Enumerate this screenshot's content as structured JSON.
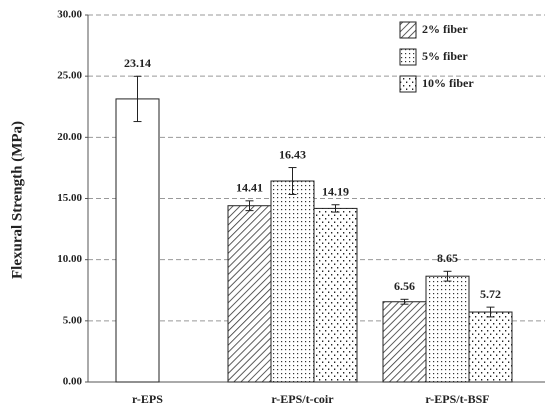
{
  "chart_data": {
    "type": "bar",
    "y_label": "Flexural Strength (MPa)",
    "categories": [
      "r-EPS",
      "r-EPS/t-coir",
      "r-EPS/t-BSF"
    ],
    "reference_values": [
      23.14,
      null,
      null
    ],
    "reference_errors": [
      1.85,
      null,
      null
    ],
    "series": [
      {
        "name": "2% fiber",
        "pattern": "diagonal",
        "values": [
          null,
          14.41,
          6.56
        ],
        "errors": [
          null,
          0.4,
          0.2
        ]
      },
      {
        "name": "5% fiber",
        "pattern": "dots",
        "values": [
          null,
          16.43,
          8.65
        ],
        "errors": [
          null,
          1.1,
          0.4
        ]
      },
      {
        "name": "10% fiber",
        "pattern": "sparse-dots",
        "values": [
          null,
          14.19,
          5.72
        ],
        "errors": [
          null,
          0.3,
          0.4
        ]
      }
    ],
    "ylim": [
      0,
      30
    ],
    "yticks": [
      {
        "value": 0,
        "label": "0.00"
      },
      {
        "value": 5,
        "label": "5.00"
      },
      {
        "value": 10,
        "label": "10.00"
      },
      {
        "value": 15,
        "label": "15.00"
      },
      {
        "value": 20,
        "label": "20.00"
      },
      {
        "value": 25,
        "label": "25.00"
      },
      {
        "value": 30,
        "label": "30.00"
      }
    ],
    "grid": true,
    "legend": "top-right"
  }
}
